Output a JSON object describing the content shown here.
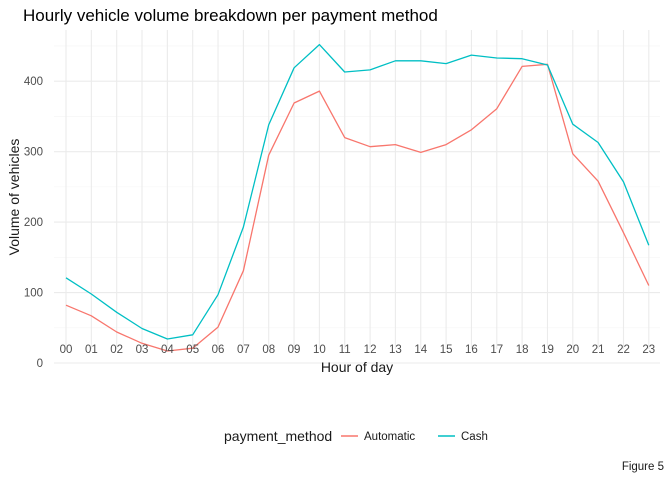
{
  "chart_data": {
    "type": "line",
    "title": "Hourly vehicle volume breakdown per payment method",
    "xlabel": "Hour of day",
    "ylabel": "Volume of vehicles",
    "categories": [
      "00",
      "01",
      "02",
      "03",
      "04",
      "05",
      "06",
      "07",
      "08",
      "09",
      "10",
      "11",
      "12",
      "13",
      "14",
      "15",
      "16",
      "17",
      "18",
      "19",
      "20",
      "21",
      "22",
      "23"
    ],
    "ylim": [
      0,
      460
    ],
    "yticks": [
      0,
      100,
      200,
      300,
      400
    ],
    "legend": {
      "title": "payment_method",
      "position": "bottom"
    },
    "grid": true,
    "caption": "Figure 5",
    "series": [
      {
        "name": "Automatic",
        "color": "#F8766D",
        "values": [
          82,
          67,
          44,
          28,
          17,
          21,
          51,
          131,
          295,
          369,
          386,
          320,
          307,
          310,
          299,
          310,
          331,
          361,
          421,
          424,
          297,
          258,
          185,
          110
        ]
      },
      {
        "name": "Cash",
        "color": "#00BFC4",
        "values": [
          121,
          98,
          72,
          49,
          34,
          40,
          97,
          193,
          338,
          419,
          452,
          413,
          416,
          429,
          429,
          425,
          437,
          433,
          432,
          423,
          339,
          313,
          257,
          167
        ]
      }
    ]
  }
}
